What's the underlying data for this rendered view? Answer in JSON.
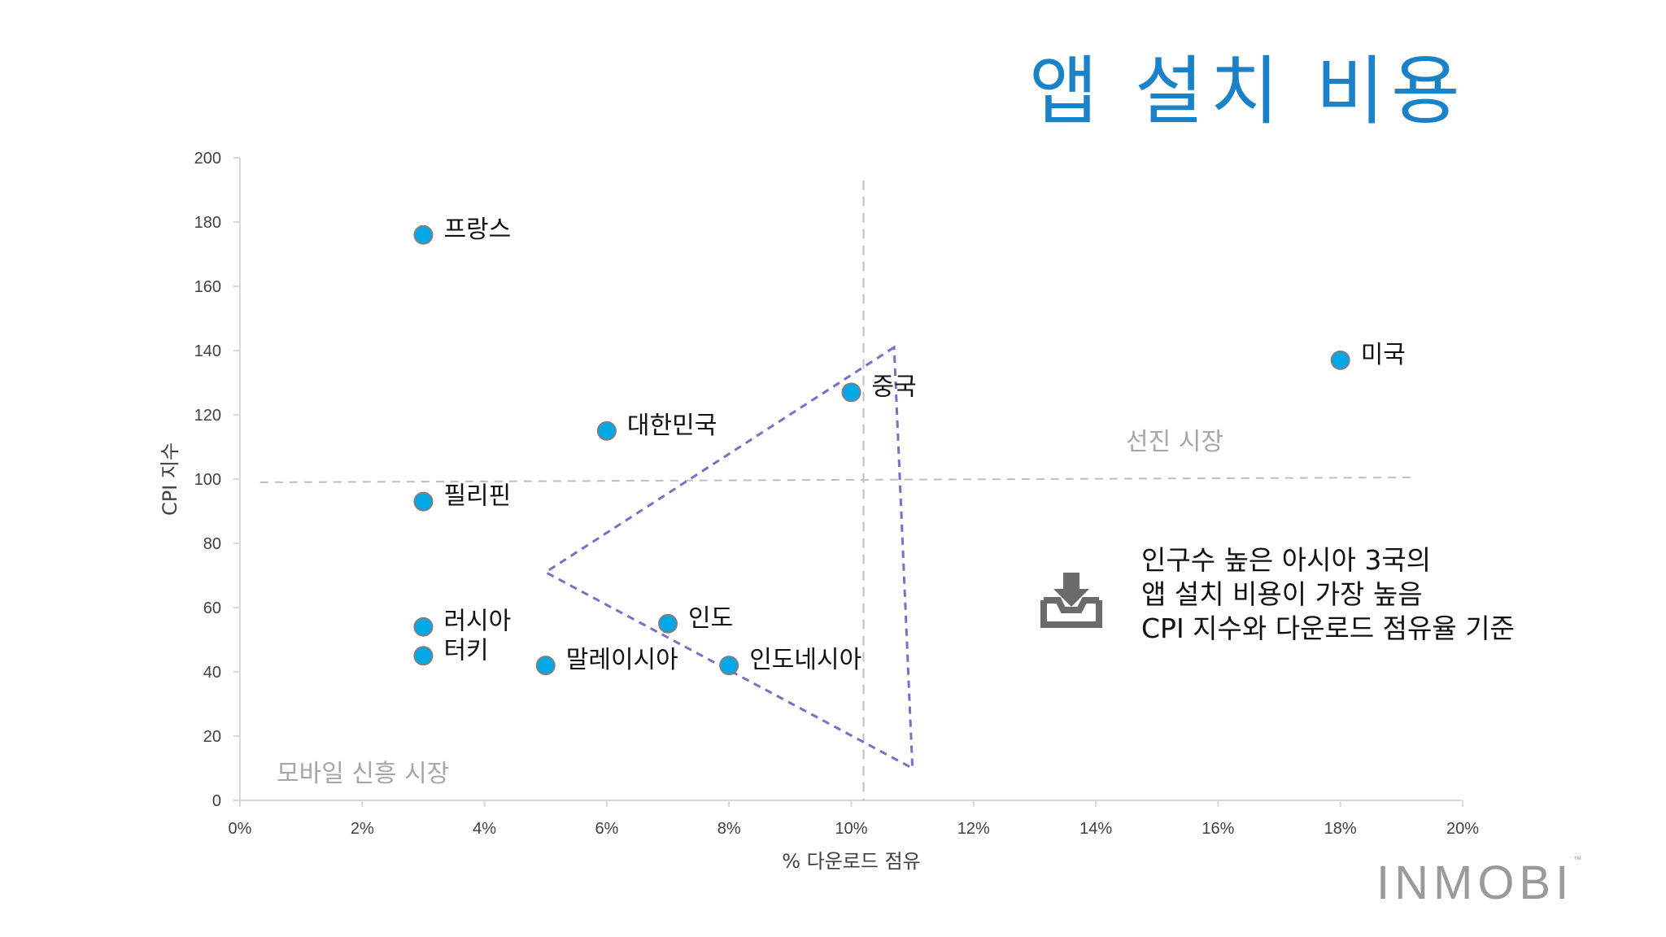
{
  "title": "앱 설치 비용",
  "insight": {
    "lines": [
      "인구수 높은 아시아 3국의",
      "앱 설치 비용이 가장 높음",
      "CPI 지수와 다운로드 점유율 기준"
    ],
    "icon": "download-tray-icon"
  },
  "brand": {
    "name": "INMOBI",
    "tm": "™"
  },
  "chart_data": {
    "type": "scatter",
    "title": "앱 설치 비용",
    "xlabel": "% 다운로드 점유",
    "ylabel": "CPI 지수",
    "xlim": [
      0,
      20
    ],
    "ylim": [
      0,
      200
    ],
    "x_ticks": [
      "0%",
      "2%",
      "4%",
      "6%",
      "8%",
      "10%",
      "12%",
      "14%",
      "16%",
      "18%",
      "20%"
    ],
    "y_ticks": [
      "0",
      "20",
      "40",
      "60",
      "80",
      "100",
      "120",
      "140",
      "160",
      "180",
      "200"
    ],
    "grid": false,
    "point_color": "#00a9e6",
    "points": [
      {
        "label": "프랑스",
        "x": 3,
        "y": 176
      },
      {
        "label": "미국",
        "x": 18,
        "y": 137
      },
      {
        "label": "중국",
        "x": 10,
        "y": 127
      },
      {
        "label": "대한민국",
        "x": 6,
        "y": 115
      },
      {
        "label": "필리핀",
        "x": 3,
        "y": 93
      },
      {
        "label": "인도",
        "x": 7,
        "y": 55
      },
      {
        "label": "러시아",
        "x": 3,
        "y": 54
      },
      {
        "label": "터키",
        "x": 3,
        "y": 45
      },
      {
        "label": "말레이시아",
        "x": 5,
        "y": 42
      },
      {
        "label": "인도네시아",
        "x": 8,
        "y": 42
      }
    ],
    "reference_lines": {
      "x": 10.2,
      "y": 100,
      "color": "#bfbfbf"
    },
    "quadrant_labels": {
      "top_right": "선진 시장",
      "bottom_left": "모바일 신흥 시장"
    },
    "highlight_triangle": {
      "vertices": [
        [
          10.7,
          141
        ],
        [
          5.0,
          71
        ],
        [
          11.0,
          10
        ]
      ],
      "color": "#7b6ec6"
    }
  }
}
